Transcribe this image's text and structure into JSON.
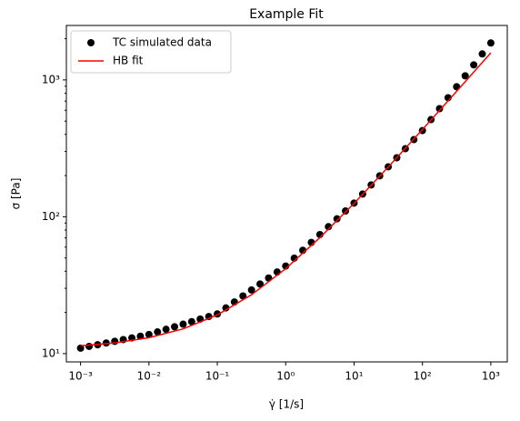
{
  "chart_data": {
    "type": "scatter",
    "title": "Example Fit",
    "x_label": "γ̇ [1/s]",
    "y_label": "σ [Pa]",
    "log_x": true,
    "log_y": true,
    "xlim": [
      0.00062,
      1740
    ],
    "ylim": [
      8.7,
      2500
    ],
    "xticks": [
      {
        "value": 0.001,
        "label": "10⁻³"
      },
      {
        "value": 0.01,
        "label": "10⁻²"
      },
      {
        "value": 0.1,
        "label": "10⁻¹"
      },
      {
        "value": 1,
        "label": "10⁰"
      },
      {
        "value": 10,
        "label": "10¹"
      },
      {
        "value": 100,
        "label": "10²"
      },
      {
        "value": 1000,
        "label": "10³"
      }
    ],
    "yticks": [
      {
        "value": 10,
        "label": "10¹"
      },
      {
        "value": 100,
        "label": "10²"
      },
      {
        "value": 1000,
        "label": "10³"
      }
    ],
    "yminorticks": [
      20,
      30,
      40,
      50,
      60,
      70,
      80,
      90,
      200,
      300,
      400,
      500,
      600,
      700,
      800,
      900,
      2000
    ],
    "legend": "upper left",
    "series": [
      {
        "name": "TC simulated data",
        "kind": "points",
        "color": "#000000",
        "x": [
          0.001,
          0.001334,
          0.001778,
          0.002371,
          0.003162,
          0.004217,
          0.005623,
          0.007499,
          0.01,
          0.01334,
          0.01778,
          0.02371,
          0.03162,
          0.04217,
          0.05623,
          0.07499,
          0.1,
          0.1334,
          0.1778,
          0.2371,
          0.3162,
          0.4217,
          0.5623,
          0.7499,
          1,
          1.334,
          1.778,
          2.371,
          3.162,
          4.217,
          5.623,
          7.499,
          10,
          13.34,
          17.78,
          23.71,
          31.62,
          42.17,
          56.23,
          74.99,
          100,
          133.4,
          177.8,
          237.1,
          316.2,
          421.7,
          562.3,
          749.9,
          1000
        ],
        "values": [
          10.96,
          11.29,
          11.61,
          11.96,
          12.3,
          12.66,
          13.03,
          13.41,
          13.8,
          14.41,
          15.05,
          15.71,
          16.41,
          17.13,
          17.89,
          18.67,
          19.5,
          21.57,
          23.85,
          26.38,
          29.17,
          32.27,
          35.69,
          39.47,
          43.65,
          49.83,
          56.89,
          64.94,
          74.13,
          84.63,
          96.61,
          110.3,
          125.9,
          146.6,
          170.8,
          199,
          231.7,
          269.9,
          314.4,
          366.3,
          426.6,
          512.9,
          616.6,
          741.3,
          891.3,
          1071.5,
          1288,
          1549,
          1862
        ]
      },
      {
        "name": "HB fit",
        "kind": "line",
        "color": "#ff0000",
        "x": [
          0.001,
          0.003162,
          0.01,
          0.03162,
          0.1,
          0.3162,
          1,
          3.162,
          10,
          31.62,
          100,
          316.2,
          1000
        ],
        "values": [
          11.41,
          11.98,
          13.07,
          15.16,
          19.18,
          26.92,
          41.8,
          70.4,
          125.4,
          231.3,
          434.8,
          825.8,
          1578.8
        ]
      }
    ]
  }
}
